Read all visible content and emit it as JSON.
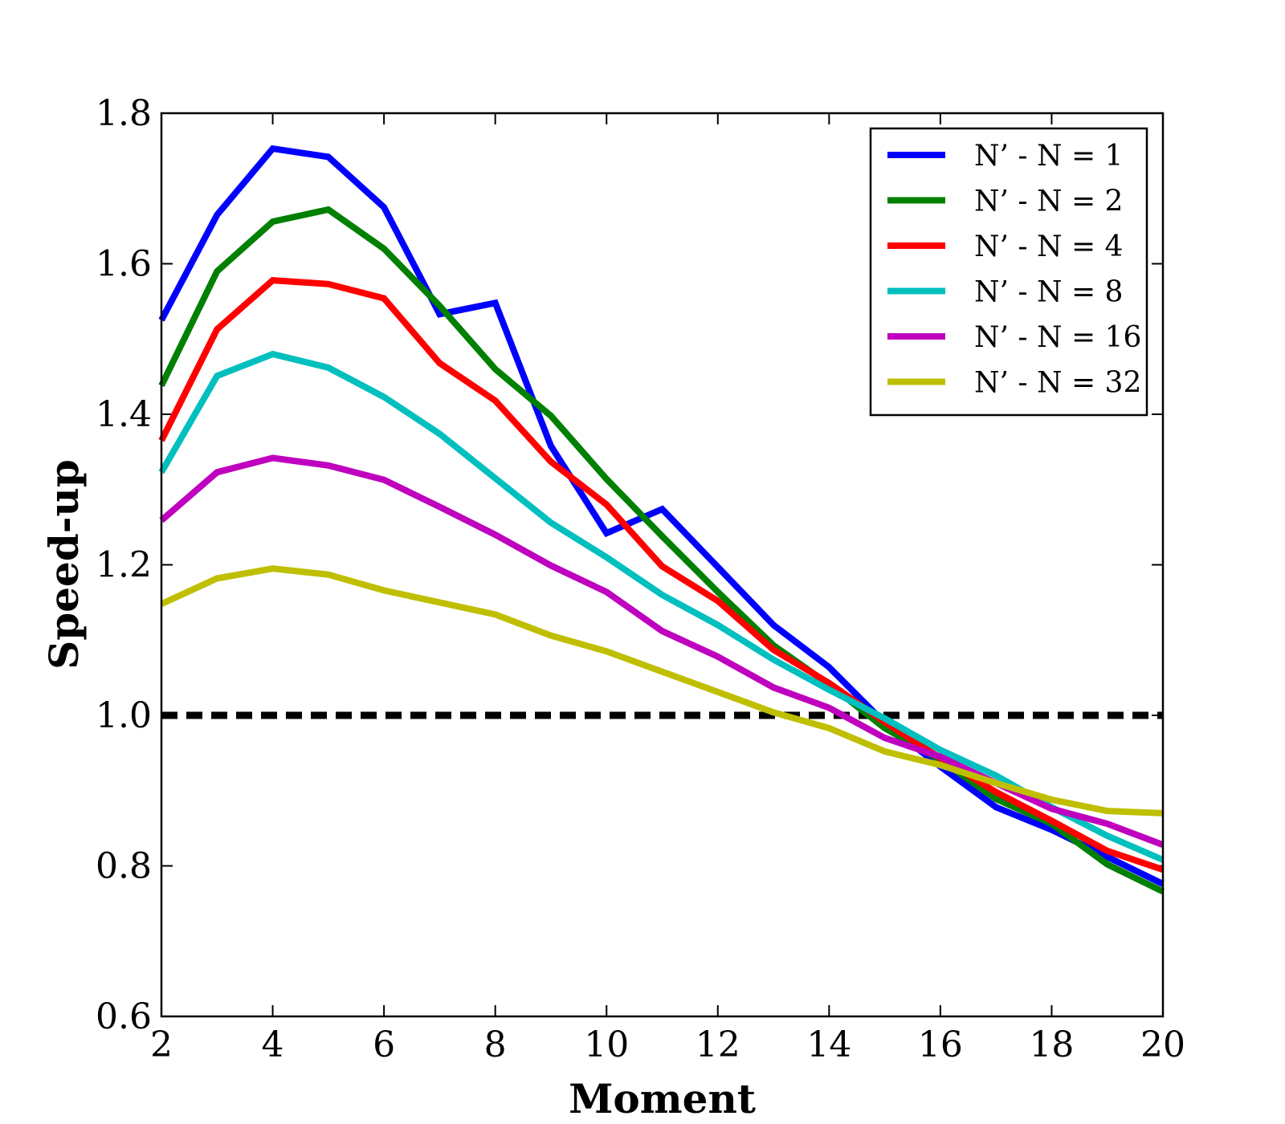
{
  "chart_data": {
    "type": "line",
    "title": "",
    "xlabel": "Moment",
    "ylabel": "Speed-up",
    "xlim": [
      2,
      20
    ],
    "ylim": [
      0.6,
      1.8
    ],
    "xticks": [
      2,
      4,
      6,
      8,
      10,
      12,
      14,
      16,
      18,
      20
    ],
    "xtick_labels": [
      "2",
      "4",
      "6",
      "8",
      "10",
      "12",
      "14",
      "16",
      "18",
      "20"
    ],
    "yticks": [
      0.6,
      0.8,
      1.0,
      1.2,
      1.4,
      1.6,
      1.8
    ],
    "ytick_labels": [
      "0.6",
      "0.8",
      "1.0",
      "1.2",
      "1.4",
      "1.6",
      "1.8"
    ],
    "grid": false,
    "legend_position": "top-right",
    "x": [
      2,
      3,
      4,
      5,
      6,
      7,
      8,
      9,
      10,
      11,
      12,
      13,
      14,
      15,
      16,
      17,
      18,
      19,
      20
    ],
    "series": [
      {
        "name": "N’ - N = 1",
        "color": "#0000ff",
        "values": [
          1.525,
          1.665,
          1.753,
          1.742,
          1.675,
          1.533,
          1.548,
          1.358,
          1.242,
          1.274,
          1.197,
          1.12,
          1.064,
          0.99,
          0.932,
          0.878,
          0.848,
          0.812,
          0.776
        ]
      },
      {
        "name": "N’ - N = 2",
        "color": "#008000",
        "values": [
          1.438,
          1.59,
          1.656,
          1.672,
          1.62,
          1.544,
          1.46,
          1.398,
          1.314,
          1.238,
          1.164,
          1.093,
          1.041,
          0.983,
          0.941,
          0.889,
          0.856,
          0.802,
          0.766
        ]
      },
      {
        "name": "N’ - N = 4",
        "color": "#ff0000",
        "values": [
          1.365,
          1.513,
          1.578,
          1.573,
          1.554,
          1.468,
          1.418,
          1.337,
          1.28,
          1.198,
          1.152,
          1.087,
          1.043,
          0.991,
          0.943,
          0.898,
          0.86,
          0.82,
          0.795
        ]
      },
      {
        "name": "N’ - N = 8",
        "color": "#00bfbf",
        "values": [
          1.323,
          1.451,
          1.48,
          1.462,
          1.423,
          1.374,
          1.315,
          1.256,
          1.21,
          1.16,
          1.12,
          1.074,
          1.034,
          0.996,
          0.954,
          0.92,
          0.878,
          0.84,
          0.808
        ]
      },
      {
        "name": "N’ - N = 16",
        "color": "#bf00bf",
        "values": [
          1.259,
          1.323,
          1.342,
          1.332,
          1.313,
          1.277,
          1.24,
          1.199,
          1.164,
          1.112,
          1.078,
          1.037,
          1.01,
          0.97,
          0.945,
          0.91,
          0.876,
          0.856,
          0.828
        ]
      },
      {
        "name": "N’ - N = 32",
        "color": "#bfbf00",
        "values": [
          1.148,
          1.182,
          1.195,
          1.187,
          1.166,
          1.15,
          1.134,
          1.106,
          1.085,
          1.058,
          1.031,
          1.004,
          0.983,
          0.952,
          0.934,
          0.91,
          0.888,
          0.873,
          0.87
        ]
      }
    ],
    "reference_line": {
      "y": 1.0,
      "style": "dashed",
      "color": "#000000"
    }
  }
}
